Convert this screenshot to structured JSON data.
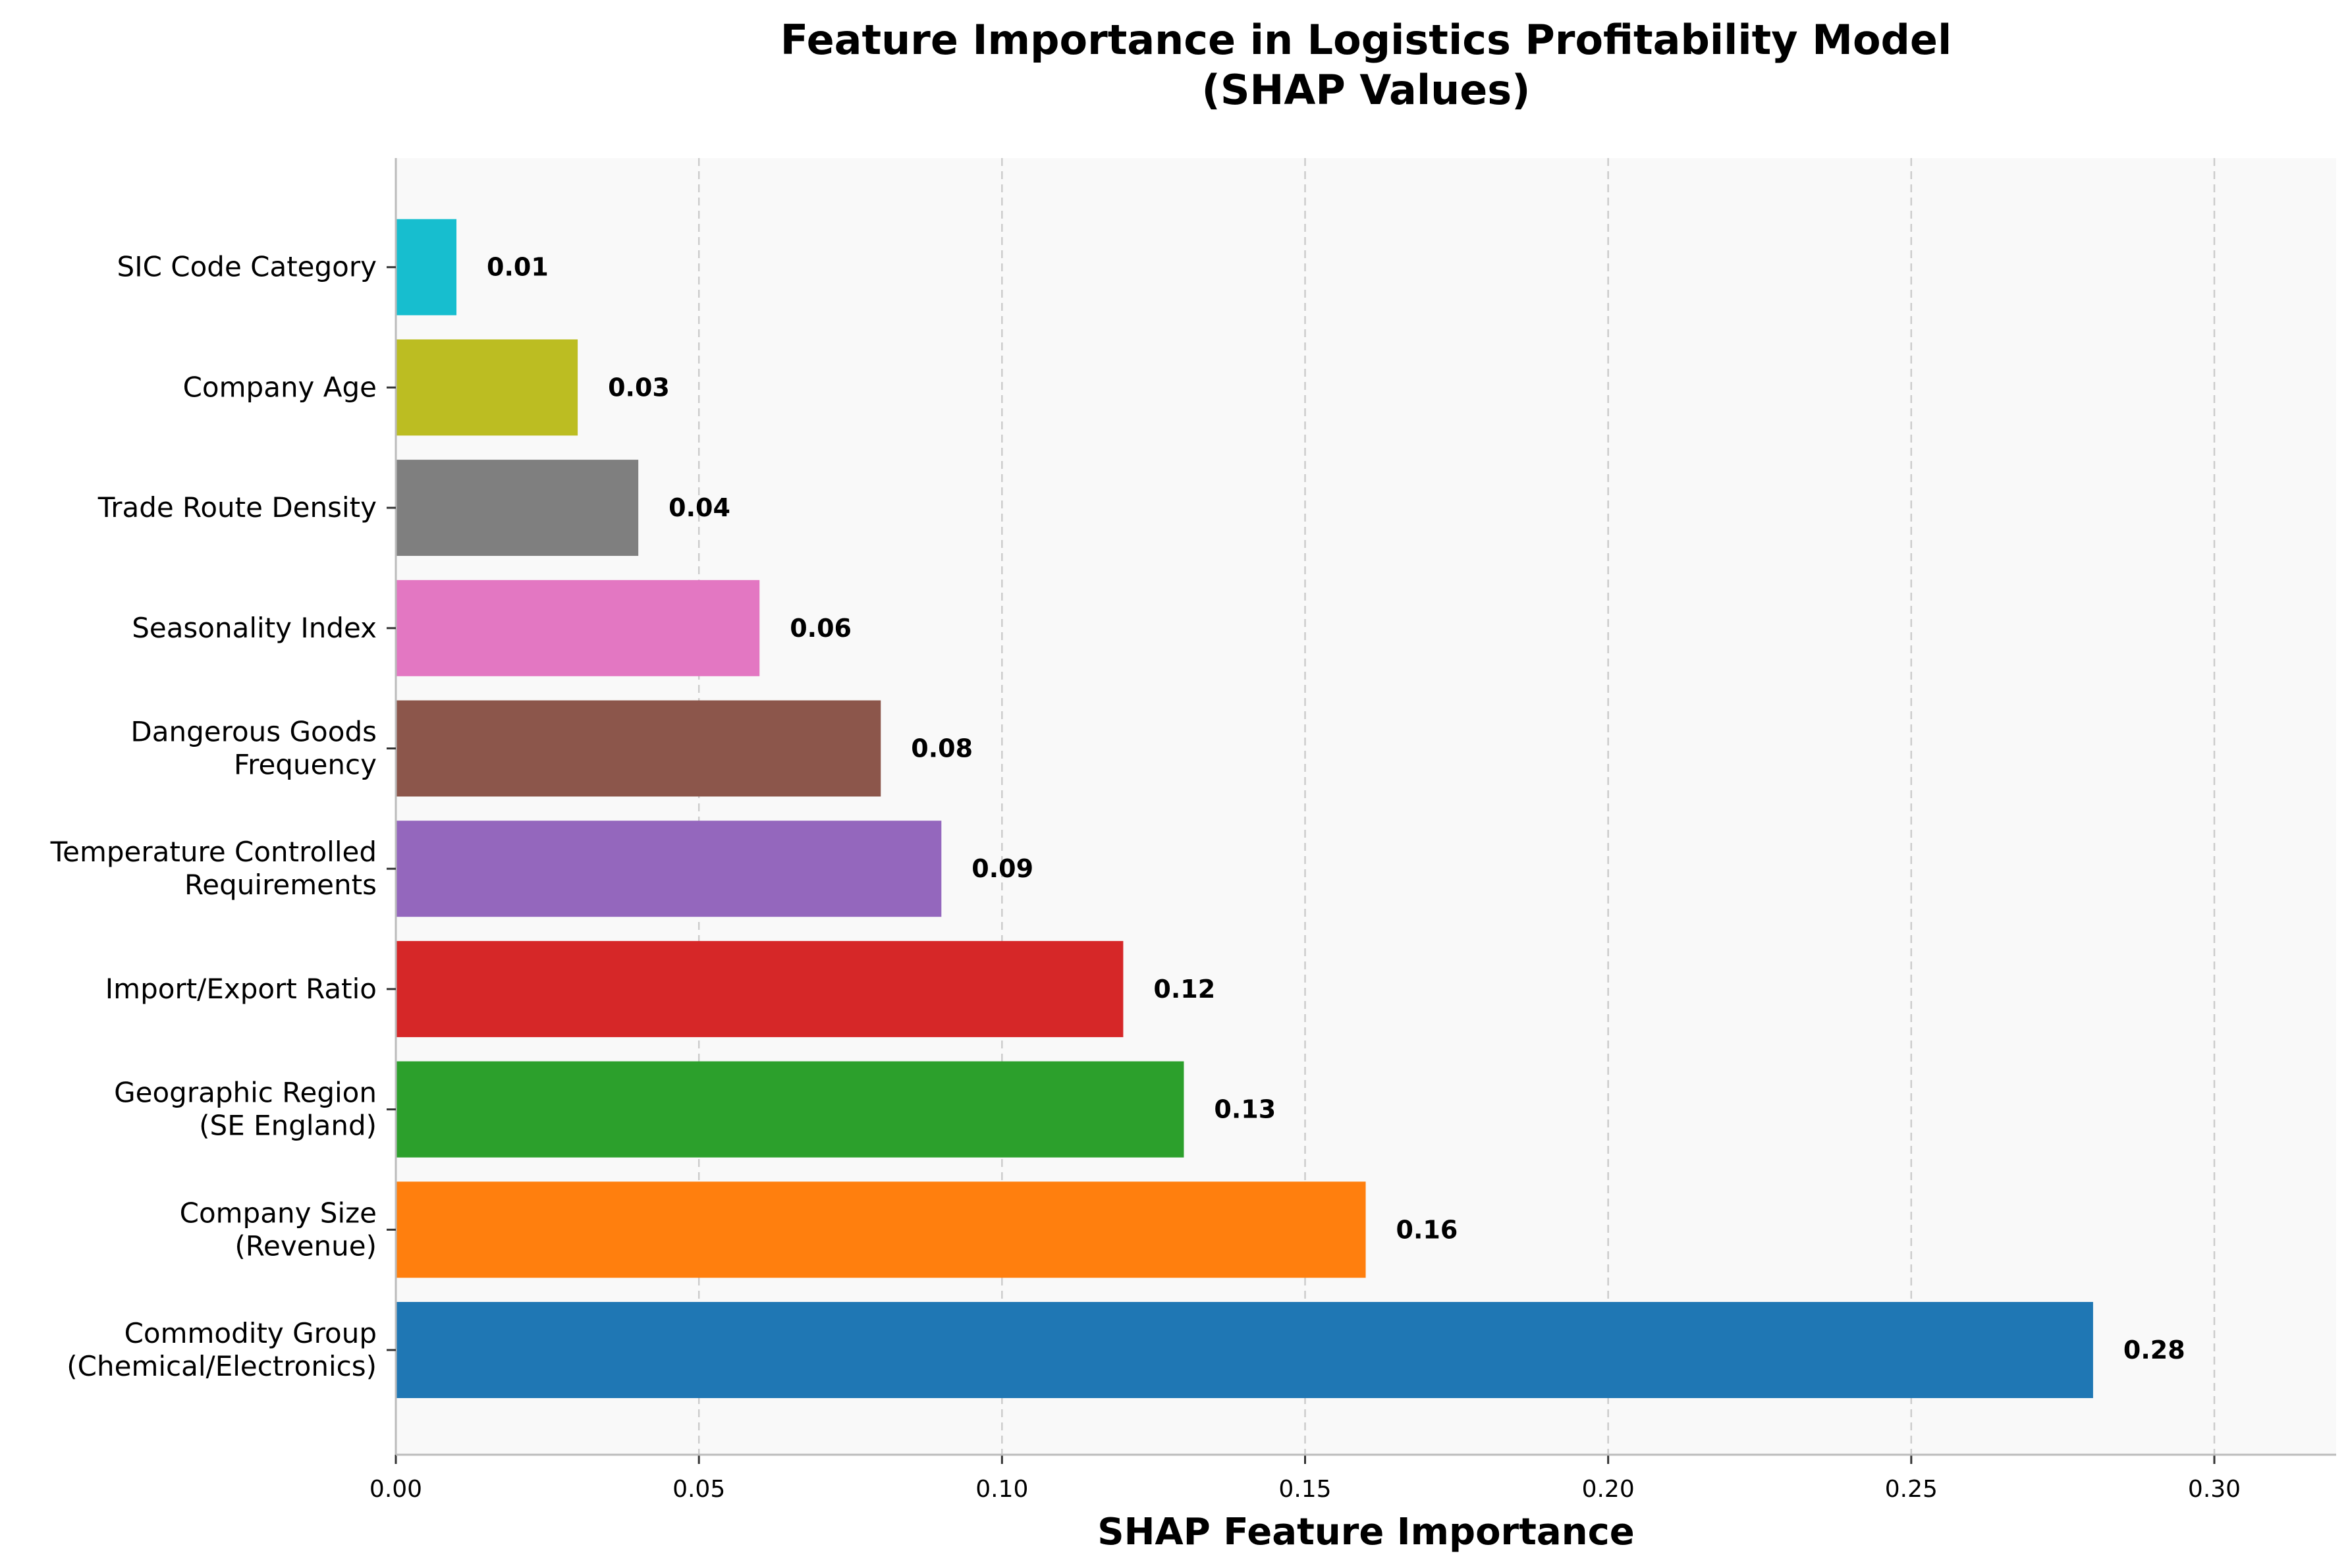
{
  "chart_data": {
    "type": "bar",
    "orientation": "horizontal",
    "title": "Feature Importance in Logistics Profitability Model\n(SHAP Values)",
    "xlabel": "SHAP Feature Importance",
    "ylabel": "",
    "xlim": [
      0,
      0.32
    ],
    "xticks": [
      "0.00",
      "0.05",
      "0.10",
      "0.15",
      "0.20",
      "0.25",
      "0.30"
    ],
    "xtick_values": [
      0,
      0.05,
      0.1,
      0.15,
      0.2,
      0.25,
      0.3
    ],
    "grid": "x-dashed",
    "categories": [
      "Commodity Group\n(Chemical/Electronics)",
      "Company Size\n(Revenue)",
      "Geographic Region\n(SE England)",
      "Import/Export Ratio",
      "Temperature Controlled\nRequirements",
      "Dangerous Goods\nFrequency",
      "Seasonality Index",
      "Trade Route Density",
      "Company Age",
      "SIC Code Category"
    ],
    "values": [
      0.28,
      0.16,
      0.13,
      0.12,
      0.09,
      0.08,
      0.06,
      0.04,
      0.03,
      0.01
    ],
    "value_labels": [
      "0.28",
      "0.16",
      "0.13",
      "0.12",
      "0.09",
      "0.08",
      "0.06",
      "0.04",
      "0.03",
      "0.01"
    ],
    "colors": [
      "#1f77b4",
      "#ff7f0e",
      "#2ca02c",
      "#d62728",
      "#9467bd",
      "#8c564b",
      "#e377c2",
      "#7f7f7f",
      "#bcbd22",
      "#17becf"
    ],
    "plot_background": "#f9f9f9"
  }
}
